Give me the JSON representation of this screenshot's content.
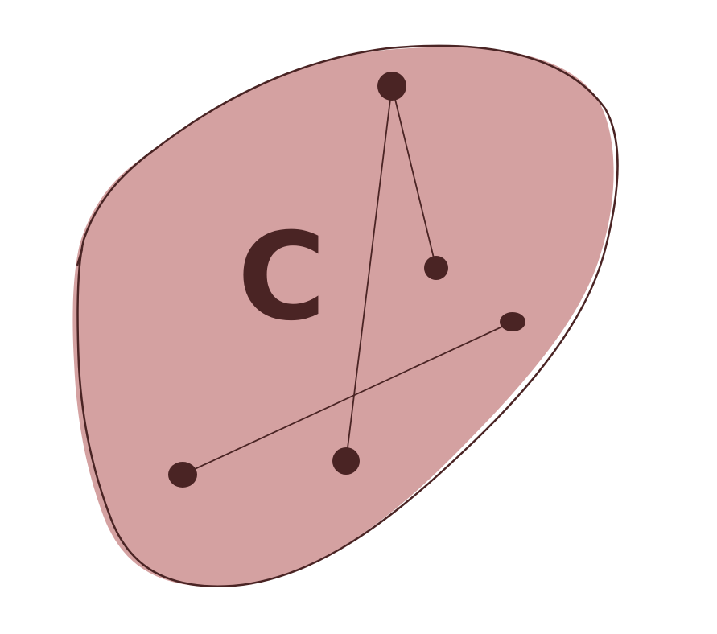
{
  "diagram": {
    "label": "C",
    "colors": {
      "fill": "#d4a1a1",
      "ink": "#4a2424",
      "background": "#ffffff"
    },
    "nodes": [
      {
        "id": "n1"
      },
      {
        "id": "n2"
      },
      {
        "id": "n3"
      },
      {
        "id": "n4"
      },
      {
        "id": "n5"
      }
    ],
    "edges": [
      {
        "from": "n1",
        "to": "n2"
      },
      {
        "from": "n1",
        "to": "n5"
      },
      {
        "from": "n3",
        "to": "n4"
      }
    ]
  }
}
